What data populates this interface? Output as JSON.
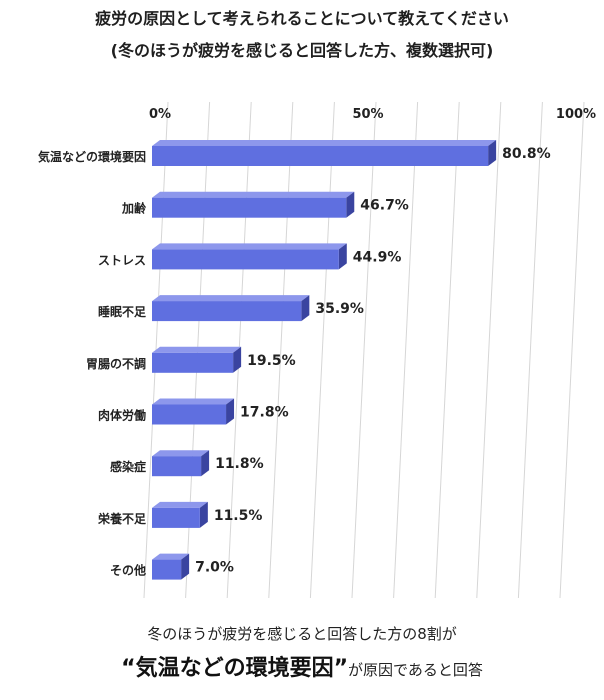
{
  "title": "疲労の原因として考えられることについて教えてください",
  "subtitle": "(冬のほうが疲労を感じると回答した方、複数選択可)",
  "chart_data": {
    "type": "bar",
    "orientation": "horizontal",
    "categories": [
      "気温などの環境要因",
      "加齢",
      "ストレス",
      "睡眠不足",
      "胃腸の不調",
      "肉体労働",
      "感染症",
      "栄養不足",
      "その他"
    ],
    "values": [
      80.8,
      46.7,
      44.9,
      35.9,
      19.5,
      17.8,
      11.8,
      11.5,
      7.0
    ],
    "value_labels": [
      "80.8%",
      "46.7%",
      "44.9%",
      "35.9%",
      "19.5%",
      "17.8%",
      "11.8%",
      "11.5%",
      "7.0%"
    ],
    "xlim": [
      0,
      100
    ],
    "ticks": [
      0,
      50,
      100
    ],
    "tick_labels": [
      "0%",
      "50%",
      "100%"
    ],
    "grid": true,
    "bar_color": "#5f6fe0",
    "bar_side_color": "#3a44a0",
    "bar_top_color": "#8d97ec"
  },
  "footer": {
    "line1": "冬のほうが疲労を感じると回答した方の8割が",
    "emphasis": "“気温などの環境要因”",
    "line2_rest": "が原因であると回答"
  }
}
